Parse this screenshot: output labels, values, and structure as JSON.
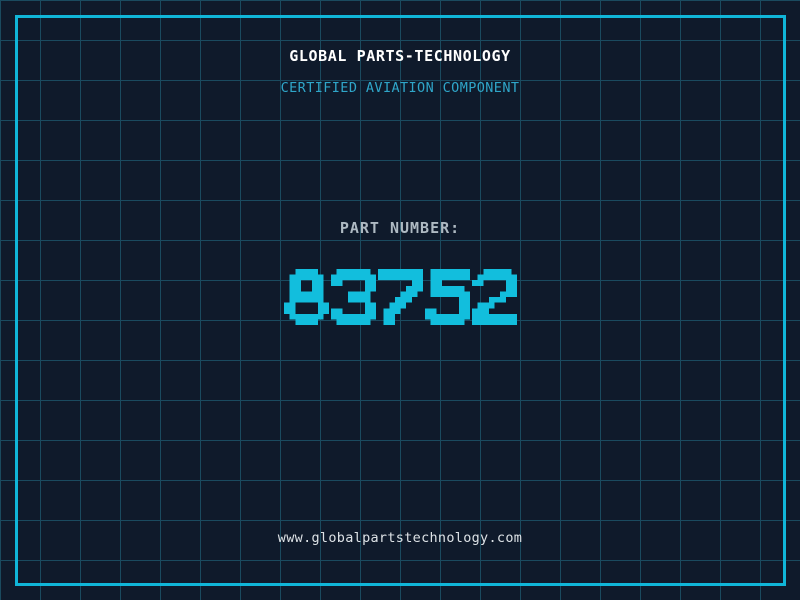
{
  "header": {
    "title": "GLOBAL PARTS-TECHNOLOGY",
    "subtitle": "CERTIFIED AVIATION COMPONENT"
  },
  "part_number": {
    "label": "PART NUMBER:",
    "value": "83752"
  },
  "footer": {
    "website": "www.globalpartstechnology.com"
  },
  "colors": {
    "background": "#0f1a2b",
    "grid_line": "#1a4a5f",
    "frame": "#10b5d8",
    "title": "#ffffff",
    "subtitle": "#2fa6c9",
    "part_label": "#aeb9c2",
    "part_value": "#12bedd",
    "website": "#dde2e6"
  }
}
